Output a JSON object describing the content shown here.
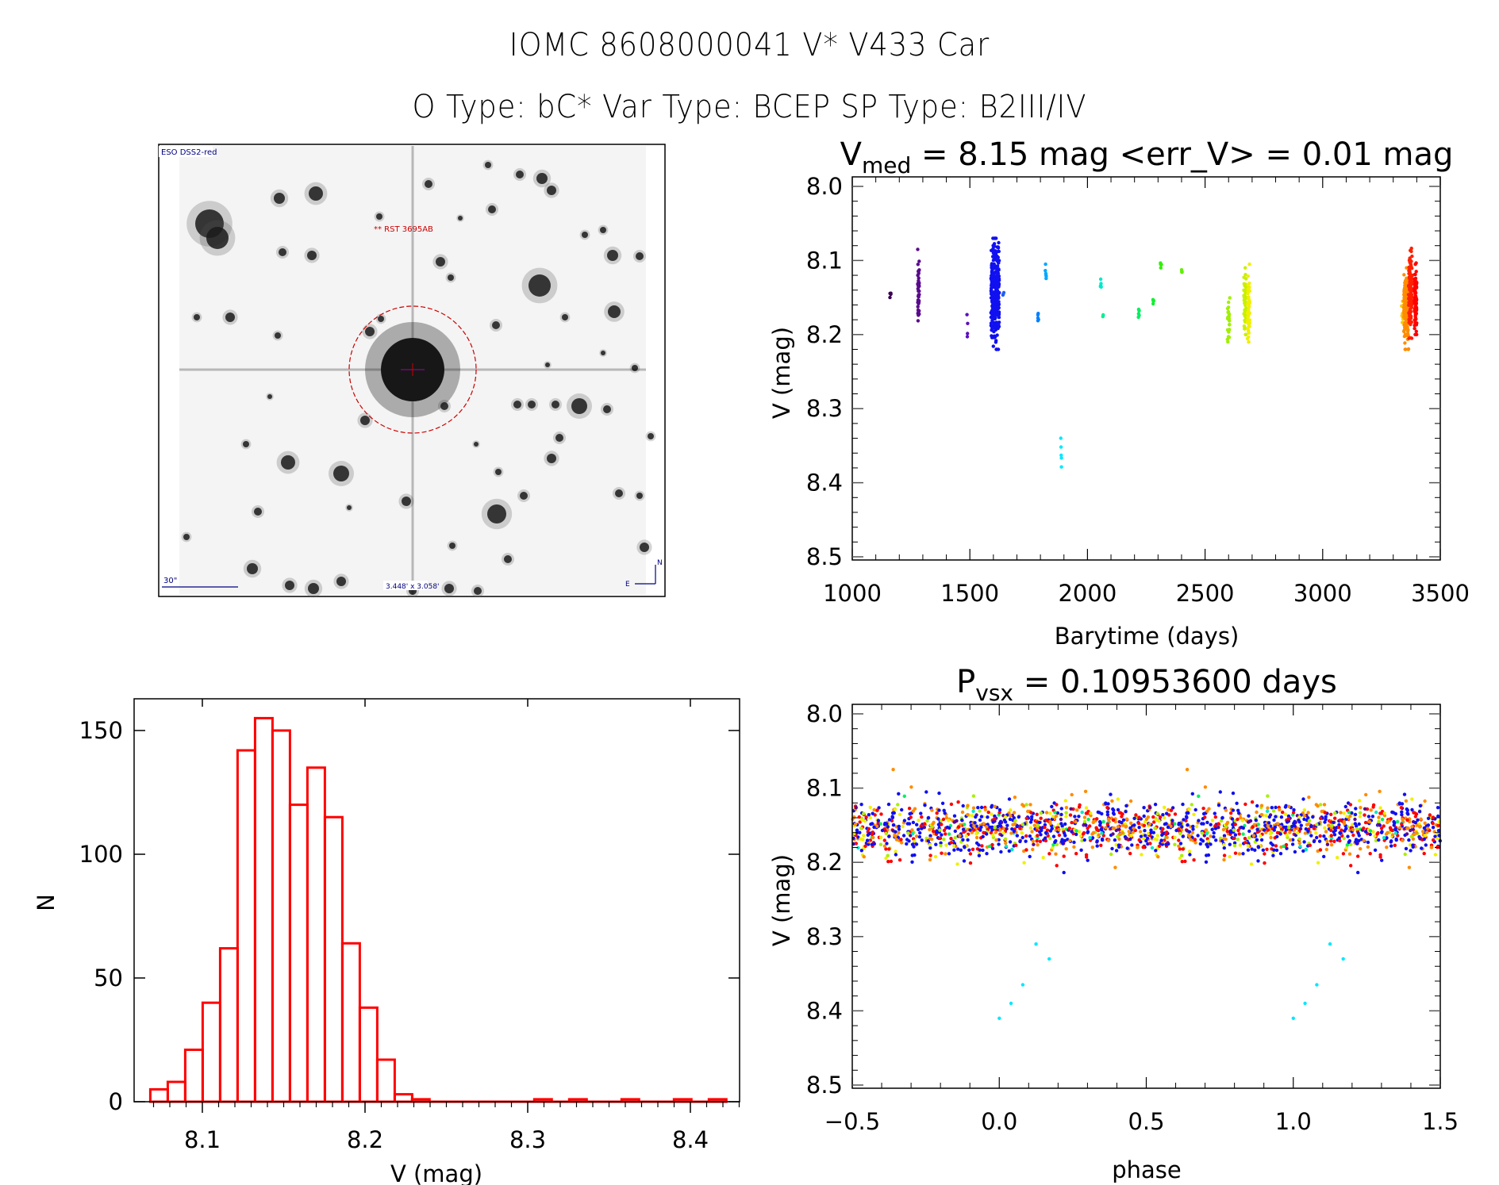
{
  "header": {
    "title_line1": "IOMC 8608000041    V* V433 Car",
    "title_line2": "O Type: bC*  Var Type: BCEP  SP Type: B2III/IV"
  },
  "finder_image": {
    "survey_label": "ESO DSS2-red",
    "target_label": "** RST 3695AB",
    "scale_label": "30\"",
    "fov_label": "3.448' x 3.058'",
    "compass_north": "N",
    "compass_east": "E",
    "colors": {
      "label": "#000080",
      "target": "#cc0000"
    }
  },
  "chart_data": [
    {
      "id": "lightcurve",
      "type": "scatter",
      "title_main": "V",
      "title_sub": "med",
      "title_rest": " = 8.15 mag <err_V> = 0.01 mag",
      "xlabel": "Barytime (days)",
      "ylabel": "V (mag)",
      "xlim": [
        1000,
        3500
      ],
      "ylim": [
        8.0,
        8.5
      ],
      "y_inverted": true,
      "xticks": [
        1000,
        1500,
        2000,
        2500,
        3000,
        3500
      ],
      "xtick_labels": [
        "1000",
        "1500",
        "2000",
        "2500",
        "3000",
        "3500"
      ],
      "yticks": [
        8.0,
        8.1,
        8.2,
        8.3,
        8.4,
        8.5
      ],
      "ytick_labels": [
        "8.0",
        "8.1",
        "8.2",
        "8.3",
        "8.4",
        "8.5"
      ],
      "grid": false,
      "clusters": [
        {
          "t": [
            1160,
            1165
          ],
          "v": [
            8.135,
            8.15
          ],
          "n": 4,
          "color": "#3a0050"
        },
        {
          "t": [
            1278,
            1285
          ],
          "v": [
            8.085,
            8.19
          ],
          "n": 45,
          "color": "#5a0a8c"
        },
        {
          "t": [
            1488,
            1492
          ],
          "v": [
            8.15,
            8.23
          ],
          "n": 4,
          "color": "#5a10c0"
        },
        {
          "t": [
            1590,
            1625
          ],
          "v": [
            8.07,
            8.22
          ],
          "n": 320,
          "color": "#1010f0"
        },
        {
          "t": [
            1640,
            1645
          ],
          "v": [
            8.14,
            8.15
          ],
          "n": 3,
          "color": "#2060f0"
        },
        {
          "t": [
            1788,
            1792
          ],
          "v": [
            8.145,
            8.19
          ],
          "n": 5,
          "color": "#0080ff"
        },
        {
          "t": [
            1820,
            1825
          ],
          "v": [
            8.105,
            8.135
          ],
          "n": 6,
          "color": "#00a8ff"
        },
        {
          "t": [
            1885,
            1890
          ],
          "v": [
            8.31,
            8.41
          ],
          "n": 5,
          "color": "#00e8ff"
        },
        {
          "t": [
            2055,
            2060
          ],
          "v": [
            8.12,
            8.15
          ],
          "n": 5,
          "color": "#00e8c8"
        },
        {
          "t": [
            2065,
            2070
          ],
          "v": [
            8.17,
            8.18
          ],
          "n": 3,
          "color": "#00f090"
        },
        {
          "t": [
            2215,
            2220
          ],
          "v": [
            8.16,
            8.18
          ],
          "n": 6,
          "color": "#00f060"
        },
        {
          "t": [
            2278,
            2282
          ],
          "v": [
            8.135,
            8.175
          ],
          "n": 5,
          "color": "#10f030"
        },
        {
          "t": [
            2310,
            2315
          ],
          "v": [
            8.1,
            8.11
          ],
          "n": 5,
          "color": "#30f000"
        },
        {
          "t": [
            2400,
            2405
          ],
          "v": [
            8.105,
            8.125
          ],
          "n": 4,
          "color": "#60f000"
        },
        {
          "t": [
            2595,
            2605
          ],
          "v": [
            8.145,
            8.215
          ],
          "n": 25,
          "color": "#a0f000"
        },
        {
          "t": [
            2665,
            2675
          ],
          "v": [
            8.11,
            8.2
          ],
          "n": 50,
          "color": "#c8f000"
        },
        {
          "t": [
            2680,
            2690
          ],
          "v": [
            8.105,
            8.21
          ],
          "n": 55,
          "color": "#f0f000"
        },
        {
          "t": [
            3335,
            3345
          ],
          "v": [
            8.155,
            8.19
          ],
          "n": 8,
          "color": "#f8c800"
        },
        {
          "t": [
            3345,
            3365
          ],
          "v": [
            8.11,
            8.22
          ],
          "n": 160,
          "color": "#ff8c00"
        },
        {
          "t": [
            3365,
            3380
          ],
          "v": [
            8.08,
            8.205
          ],
          "n": 110,
          "color": "#ff2000"
        },
        {
          "t": [
            3390,
            3400
          ],
          "v": [
            8.1,
            8.2
          ],
          "n": 90,
          "color": "#ff0000"
        }
      ]
    },
    {
      "id": "histogram",
      "type": "bar",
      "title": "",
      "xlabel": "V (mag)",
      "ylabel": "N",
      "xlim": [
        8.062,
        8.43
      ],
      "ylim": [
        0,
        162
      ],
      "xticks": [
        8.1,
        8.2,
        8.3,
        8.4
      ],
      "xtick_labels": [
        "8.1",
        "8.2",
        "8.3",
        "8.4"
      ],
      "yticks": [
        0,
        50,
        100,
        150
      ],
      "ytick_labels": [
        "0",
        "50",
        "100",
        "150"
      ],
      "grid": false,
      "bar_style": "outline",
      "color": "#ff0000",
      "bin_start": 8.068,
      "bin_width": 0.01073,
      "counts": [
        5,
        8,
        21,
        40,
        62,
        142,
        155,
        150,
        120,
        135,
        115,
        64,
        38,
        17,
        3,
        1,
        0,
        0,
        0,
        0,
        0,
        0,
        1,
        0,
        1,
        0,
        0,
        1,
        0,
        0,
        1,
        0,
        1
      ]
    },
    {
      "id": "phased",
      "type": "scatter",
      "title_main": "P",
      "title_sub": "vsx",
      "title_rest": " = 0.10953600 days",
      "xlabel": "phase",
      "ylabel": "V (mag)",
      "xlim": [
        -0.5,
        1.5
      ],
      "ylim": [
        8.0,
        8.5
      ],
      "y_inverted": true,
      "xticks": [
        -0.5,
        0.0,
        0.5,
        1.0,
        1.5
      ],
      "xtick_labels": [
        "−0.5",
        "0.0",
        "0.5",
        "1.0",
        "1.5"
      ],
      "yticks": [
        8.0,
        8.1,
        8.2,
        8.3,
        8.4,
        8.5
      ],
      "ytick_labels": [
        "8.0",
        "8.1",
        "8.2",
        "8.3",
        "8.4",
        "8.5"
      ],
      "grid": false,
      "band": {
        "center": 8.155,
        "spread": 0.03,
        "min": 8.07,
        "max": 8.235
      },
      "color_mix": [
        {
          "color": "#1010f0",
          "weight": 0.4
        },
        {
          "color": "#ff0000",
          "weight": 0.22
        },
        {
          "color": "#ff8c00",
          "weight": 0.18
        },
        {
          "color": "#f0f000",
          "weight": 0.08
        },
        {
          "color": "#a8f000",
          "weight": 0.06
        },
        {
          "color": "#5a0a8c",
          "weight": 0.03
        },
        {
          "color": "#00e8c8",
          "weight": 0.015
        },
        {
          "color": "#00f060",
          "weight": 0.015
        }
      ],
      "n_points_per_cycle": 900,
      "outliers": [
        {
          "phase": 0.0,
          "v": 8.41,
          "color": "#00e8ff"
        },
        {
          "phase": 0.04,
          "v": 8.39,
          "color": "#00e8ff"
        },
        {
          "phase": 0.08,
          "v": 8.365,
          "color": "#00e8ff"
        },
        {
          "phase": 0.125,
          "v": 8.31,
          "color": "#00e8ff"
        },
        {
          "phase": 0.17,
          "v": 8.33,
          "color": "#00e8ff"
        }
      ]
    }
  ]
}
